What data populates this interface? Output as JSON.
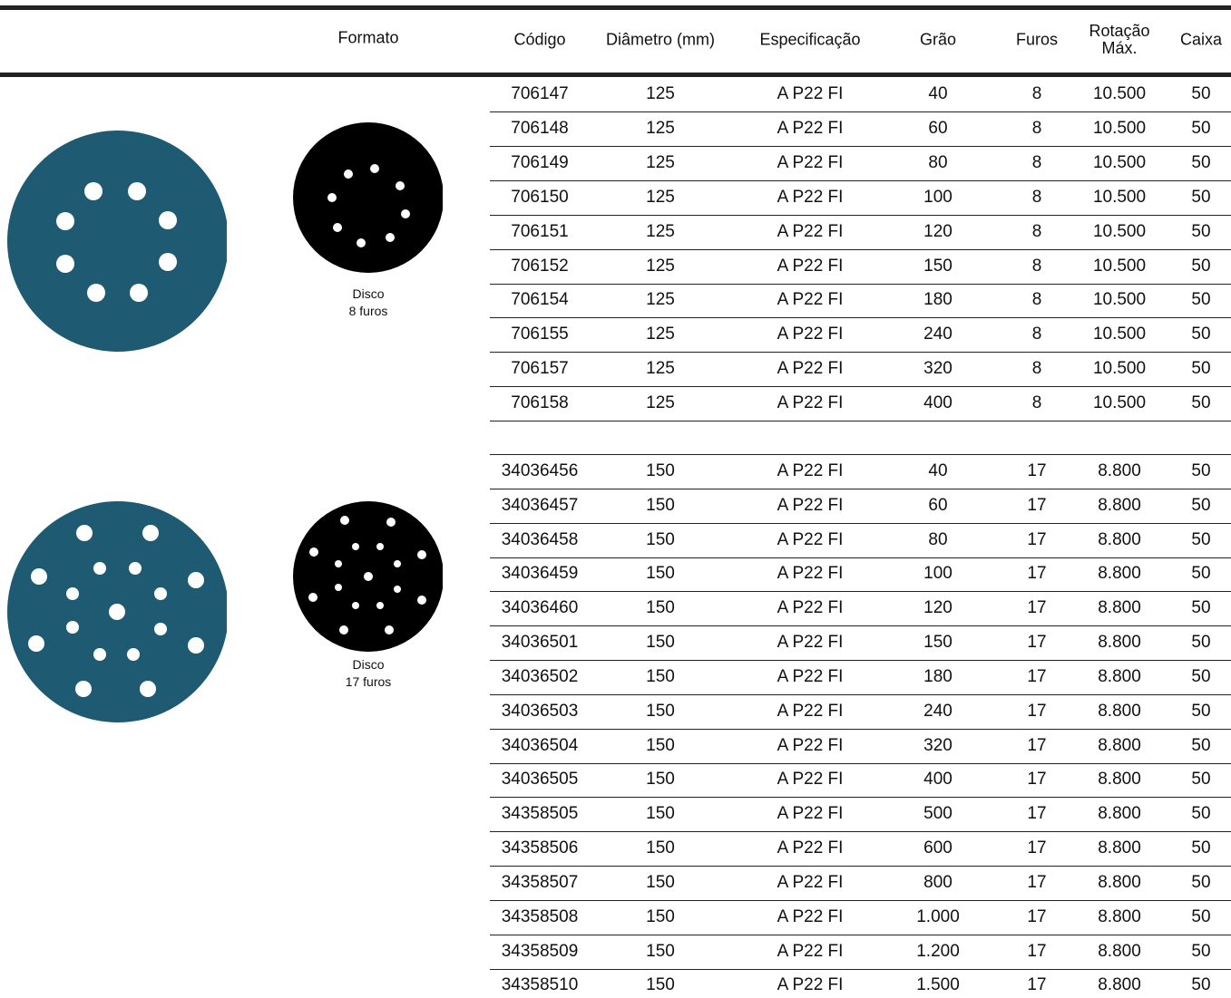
{
  "header": {
    "formato": "Formato",
    "columns": [
      "Código",
      "Diâmetro (mm)",
      "Especificação",
      "Grão",
      "Furos",
      "Rotação Máx.",
      "Caixa"
    ]
  },
  "groups": [
    {
      "caption": [
        "Disco",
        "8 furos"
      ],
      "rows": [
        [
          "706147",
          "125",
          "A P22 FI",
          "40",
          "8",
          "10.500",
          "50"
        ],
        [
          "706148",
          "125",
          "A P22 FI",
          "60",
          "8",
          "10.500",
          "50"
        ],
        [
          "706149",
          "125",
          "A P22 FI",
          "80",
          "8",
          "10.500",
          "50"
        ],
        [
          "706150",
          "125",
          "A P22 FI",
          "100",
          "8",
          "10.500",
          "50"
        ],
        [
          "706151",
          "125",
          "A P22 FI",
          "120",
          "8",
          "10.500",
          "50"
        ],
        [
          "706152",
          "125",
          "A P22 FI",
          "150",
          "8",
          "10.500",
          "50"
        ],
        [
          "706154",
          "125",
          "A P22 FI",
          "180",
          "8",
          "10.500",
          "50"
        ],
        [
          "706155",
          "125",
          "A P22 FI",
          "240",
          "8",
          "10.500",
          "50"
        ],
        [
          "706157",
          "125",
          "A P22 FI",
          "320",
          "8",
          "10.500",
          "50"
        ],
        [
          "706158",
          "125",
          "A P22 FI",
          "400",
          "8",
          "10.500",
          "50"
        ]
      ]
    },
    {
      "caption": [
        "Disco",
        "17 furos"
      ],
      "rows": [
        [
          "34036456",
          "150",
          "A P22 FI",
          "40",
          "17",
          "8.800",
          "50"
        ],
        [
          "34036457",
          "150",
          "A P22 FI",
          "60",
          "17",
          "8.800",
          "50"
        ],
        [
          "34036458",
          "150",
          "A P22 FI",
          "80",
          "17",
          "8.800",
          "50"
        ],
        [
          "34036459",
          "150",
          "A P22 FI",
          "100",
          "17",
          "8.800",
          "50"
        ],
        [
          "34036460",
          "150",
          "A P22 FI",
          "120",
          "17",
          "8.800",
          "50"
        ],
        [
          "34036501",
          "150",
          "A P22 FI",
          "150",
          "17",
          "8.800",
          "50"
        ],
        [
          "34036502",
          "150",
          "A P22 FI",
          "180",
          "17",
          "8.800",
          "50"
        ],
        [
          "34036503",
          "150",
          "A P22 FI",
          "240",
          "17",
          "8.800",
          "50"
        ],
        [
          "34036504",
          "150",
          "A P22 FI",
          "320",
          "17",
          "8.800",
          "50"
        ],
        [
          "34036505",
          "150",
          "A P22 FI",
          "400",
          "17",
          "8.800",
          "50"
        ],
        [
          "34358505",
          "150",
          "A P22 FI",
          "500",
          "17",
          "8.800",
          "50"
        ],
        [
          "34358506",
          "150",
          "A P22 FI",
          "600",
          "17",
          "8.800",
          "50"
        ],
        [
          "34358507",
          "150",
          "A P22 FI",
          "800",
          "17",
          "8.800",
          "50"
        ],
        [
          "34358508",
          "150",
          "A P22 FI",
          "1.000",
          "17",
          "8.800",
          "50"
        ],
        [
          "34358509",
          "150",
          "A P22 FI",
          "1.200",
          "17",
          "8.800",
          "50"
        ],
        [
          "34358510",
          "150",
          "A P22 FI",
          "1.500",
          "17",
          "8.800",
          "50"
        ]
      ]
    }
  ]
}
